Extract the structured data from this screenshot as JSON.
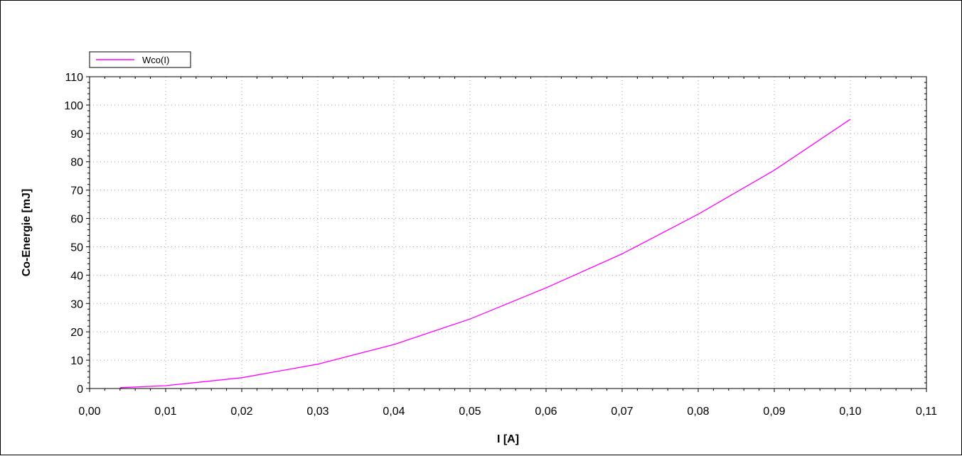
{
  "chart_data": {
    "type": "line",
    "title": "",
    "xlabel": "I [A]",
    "ylabel": "Co-Energie [mJ]",
    "xlim": [
      0,
      0.11
    ],
    "ylim": [
      0,
      110
    ],
    "x_ticks": [
      "0,00",
      "0,01",
      "0,02",
      "0,03",
      "0,04",
      "0,05",
      "0,06",
      "0,07",
      "0,08",
      "0,09",
      "0,10",
      "0,11"
    ],
    "y_ticks": [
      "0",
      "10",
      "20",
      "30",
      "40",
      "50",
      "60",
      "70",
      "80",
      "90",
      "100",
      "110"
    ],
    "grid": true,
    "legend_position": "top-left",
    "series": [
      {
        "name": "Wco(I)",
        "color": "#ff00ff",
        "x": [
          0.004,
          0.01,
          0.02,
          0.03,
          0.04,
          0.05,
          0.06,
          0.07,
          0.08,
          0.09,
          0.1
        ],
        "y": [
          0.3,
          1.0,
          3.8,
          8.6,
          15.5,
          24.5,
          35.5,
          47.5,
          61.5,
          77.0,
          95.0
        ]
      }
    ]
  }
}
